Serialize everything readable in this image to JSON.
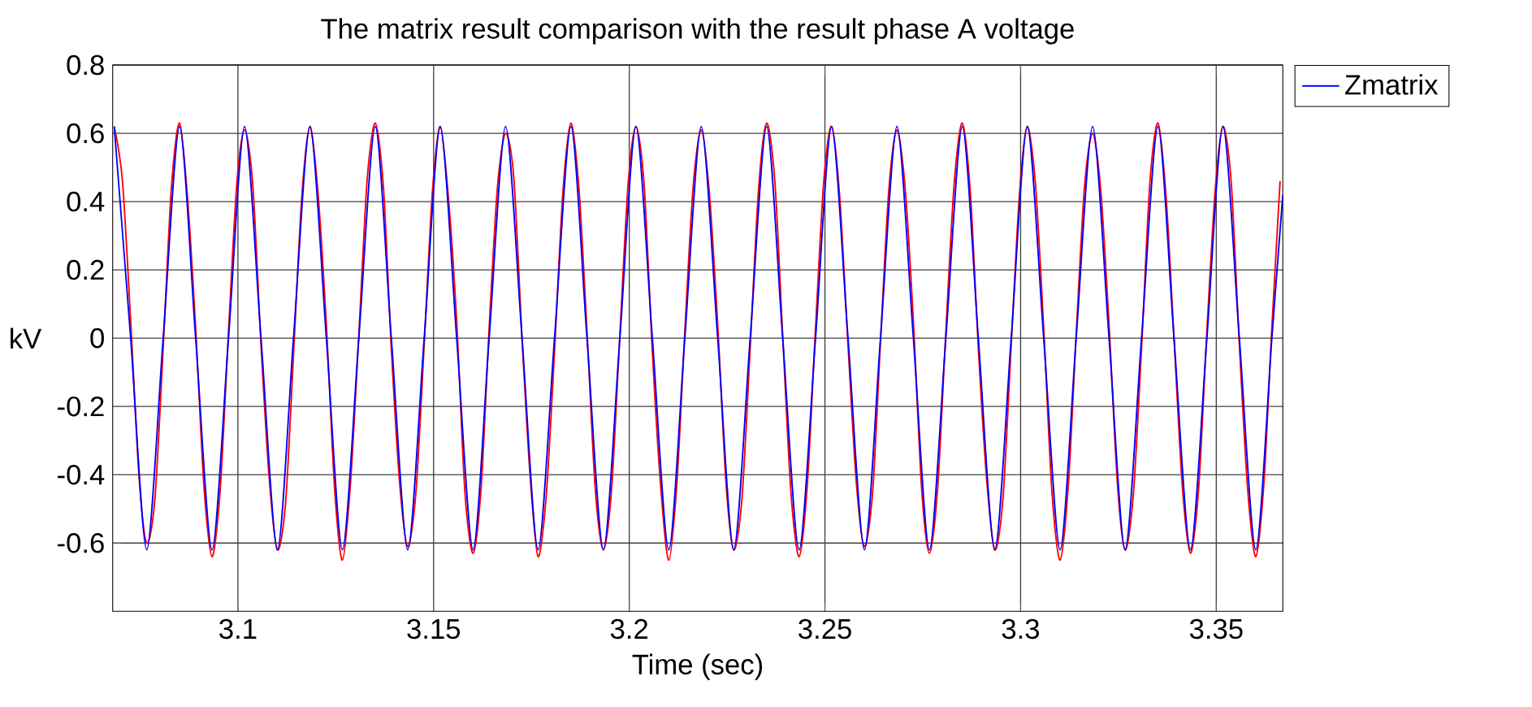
{
  "chart_data": {
    "type": "line",
    "title": "The matrix result comparison with the result phase A voltage",
    "xlabel": "Time (sec)",
    "ylabel": "kV",
    "xlim": [
      3.068,
      3.367
    ],
    "xticks": [
      3.1,
      3.15,
      3.2,
      3.25,
      3.3,
      3.35
    ],
    "ylim": [
      -0.8,
      0.8
    ],
    "yticks": [
      -0.6,
      -0.4,
      -0.2,
      0,
      0.2,
      0.4,
      0.6,
      0.8
    ],
    "grid": true,
    "legend": "right",
    "series": [
      {
        "color": "#ff0000",
        "x": [
          3.0684,
          3.0705,
          3.0726,
          3.0747,
          3.0767,
          3.0788,
          3.0809,
          3.083,
          3.0851,
          3.0872,
          3.0892,
          3.0913,
          3.0934,
          3.0955,
          3.0976,
          3.0997,
          3.1017,
          3.1038,
          3.1059,
          3.108,
          3.1101,
          3.1122,
          3.1142,
          3.1163,
          3.1184,
          3.1205,
          3.1226,
          3.1247,
          3.1267,
          3.1288,
          3.1309,
          3.133,
          3.1351,
          3.1372,
          3.1392,
          3.1413,
          3.1434,
          3.1455,
          3.1476,
          3.1497,
          3.1517,
          3.1538,
          3.1559,
          3.158,
          3.1601,
          3.1622,
          3.1642,
          3.1663,
          3.1684,
          3.1705,
          3.1726,
          3.1747,
          3.1767,
          3.1788,
          3.1809,
          3.183,
          3.1851,
          3.1872,
          3.1892,
          3.1913,
          3.1934,
          3.1955,
          3.1976,
          3.1997,
          3.2017,
          3.2038,
          3.2059,
          3.208,
          3.2101,
          3.2122,
          3.2142,
          3.2163,
          3.2184,
          3.2205,
          3.2226,
          3.2247,
          3.2267,
          3.2288,
          3.2309,
          3.233,
          3.2351,
          3.2372,
          3.2392,
          3.2413,
          3.2434,
          3.2455,
          3.2476,
          3.2497,
          3.2517,
          3.2538,
          3.2559,
          3.258,
          3.2601,
          3.2622,
          3.2642,
          3.2663,
          3.2684,
          3.2705,
          3.2726,
          3.2747,
          3.2767,
          3.2788,
          3.2809,
          3.283,
          3.2851,
          3.2872,
          3.2892,
          3.2913,
          3.2934,
          3.2955,
          3.2976,
          3.2997,
          3.3017,
          3.3038,
          3.3059,
          3.308,
          3.3101,
          3.3122,
          3.3142,
          3.3163,
          3.3184,
          3.3205,
          3.3226,
          3.3247,
          3.3267,
          3.3288,
          3.3309,
          3.333,
          3.3351,
          3.3372,
          3.3392,
          3.3413,
          3.3434,
          3.3455,
          3.3476,
          3.3497,
          3.3517,
          3.3538,
          3.3559,
          3.358,
          3.3601,
          3.3622,
          3.3642,
          3.3663
        ],
        "values": [
          0.62,
          0.46,
          0.05,
          -0.4,
          -0.6,
          -0.47,
          -0.03,
          0.44,
          0.63,
          0.4,
          0.03,
          -0.43,
          -0.64,
          -0.44,
          0.02,
          0.45,
          0.61,
          0.45,
          -0.02,
          -0.41,
          -0.62,
          -0.48,
          -0.05,
          0.41,
          0.62,
          0.42,
          0.04,
          -0.44,
          -0.65,
          -0.42,
          0.01,
          0.46,
          0.63,
          0.44,
          -0.03,
          -0.42,
          -0.61,
          -0.45,
          -0.02,
          0.43,
          0.62,
          0.41,
          0.05,
          -0.45,
          -0.63,
          -0.43,
          0.03,
          0.44,
          0.6,
          0.47,
          0.0,
          -0.41,
          -0.64,
          -0.46,
          -0.04,
          0.42,
          0.63,
          0.43,
          0.02,
          -0.44,
          -0.62,
          -0.44,
          0.01,
          0.45,
          0.62,
          0.45,
          -0.04,
          -0.43,
          -0.65,
          -0.42,
          0.02,
          0.44,
          0.61,
          0.42,
          0.04,
          -0.42,
          -0.62,
          -0.47,
          -0.03,
          0.43,
          0.63,
          0.46,
          0.01,
          -0.45,
          -0.64,
          -0.43,
          0.03,
          0.46,
          0.62,
          0.41,
          -0.02,
          -0.42,
          -0.61,
          -0.45,
          -0.01,
          0.43,
          0.61,
          0.44,
          0.05,
          -0.44,
          -0.63,
          -0.44,
          0.02,
          0.45,
          0.63,
          0.42,
          -0.03,
          -0.41,
          -0.62,
          -0.47,
          -0.02,
          0.42,
          0.62,
          0.45,
          0.03,
          -0.45,
          -0.65,
          -0.43,
          0.01,
          0.44,
          0.6,
          0.43,
          0.04,
          -0.42,
          -0.62,
          -0.46,
          -0.03,
          0.45,
          0.63,
          0.41,
          0.0,
          -0.43,
          -0.63,
          -0.44,
          0.02,
          0.43,
          0.62,
          0.46,
          -0.02,
          -0.44,
          -0.64,
          -0.42,
          0.03,
          0.46
        ]
      },
      {
        "name": "Zmatrix",
        "color": "#0000ff",
        "x": [
          3.0684,
          3.0726,
          3.0767,
          3.0809,
          3.0851,
          3.0892,
          3.0934,
          3.0976,
          3.1017,
          3.1059,
          3.1101,
          3.1142,
          3.1184,
          3.1226,
          3.1267,
          3.1309,
          3.1351,
          3.1392,
          3.1434,
          3.1476,
          3.1517,
          3.1559,
          3.1601,
          3.1642,
          3.1684,
          3.1726,
          3.1767,
          3.1809,
          3.1851,
          3.1892,
          3.1934,
          3.1976,
          3.2017,
          3.2059,
          3.2101,
          3.2142,
          3.2184,
          3.2226,
          3.2267,
          3.2309,
          3.2351,
          3.2392,
          3.2434,
          3.2476,
          3.2517,
          3.2559,
          3.2601,
          3.2642,
          3.2684,
          3.2726,
          3.2767,
          3.2809,
          3.2851,
          3.2892,
          3.2934,
          3.2976,
          3.3017,
          3.3059,
          3.3101,
          3.3142,
          3.3184,
          3.3226,
          3.3267,
          3.3309,
          3.3351,
          3.3392,
          3.3434,
          3.3476,
          3.3517,
          3.3559,
          3.3601,
          3.3642,
          3.367
        ],
        "values": [
          0.62,
          0,
          -0.62,
          0,
          0.62,
          0,
          -0.62,
          0,
          0.62,
          0,
          -0.62,
          0,
          0.62,
          0,
          -0.62,
          0,
          0.62,
          0,
          -0.62,
          0,
          0.62,
          0,
          -0.62,
          0,
          0.62,
          0,
          -0.62,
          0,
          0.62,
          0,
          -0.62,
          0,
          0.62,
          0,
          -0.62,
          0,
          0.62,
          0,
          -0.62,
          0,
          0.62,
          0,
          -0.62,
          0,
          0.62,
          0,
          -0.62,
          0,
          0.62,
          0,
          -0.62,
          0,
          0.62,
          0,
          -0.62,
          0,
          0.62,
          0,
          -0.62,
          0,
          0.62,
          0,
          -0.62,
          0,
          0.62,
          0,
          -0.62,
          0,
          0.62,
          0,
          -0.62,
          0,
          0.42
        ]
      }
    ]
  }
}
